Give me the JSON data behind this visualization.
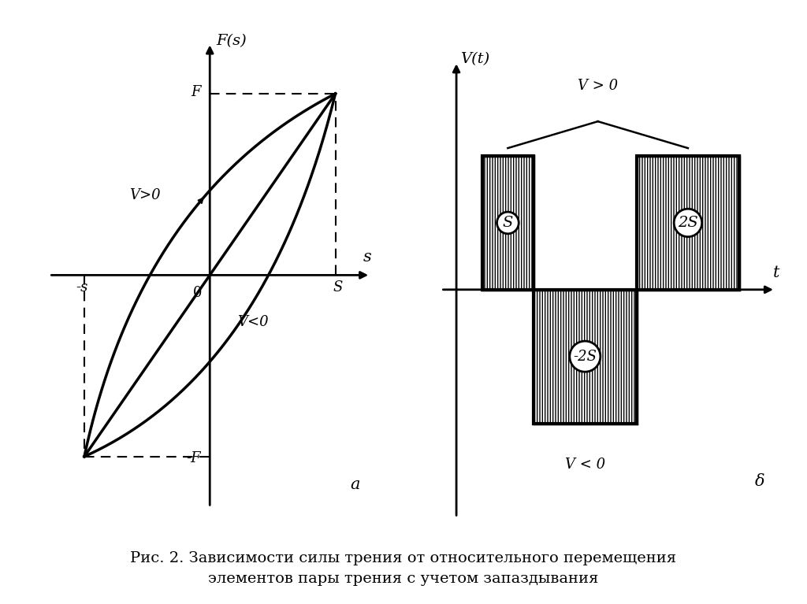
{
  "bg_color": "#ffffff",
  "left_panel": {
    "axis_label_x": "s",
    "axis_label_y": "F(s)",
    "label_F": "F",
    "label_negF": "-F",
    "label_negS": "-s",
    "label_S": "S",
    "label_O": "0",
    "label_Vpos": "V>0",
    "label_Vneg": "V<0",
    "label_a": "a"
  },
  "right_panel": {
    "axis_label_x": "t",
    "axis_label_y": "V(t)",
    "label_Vpos": "V > 0",
    "label_Vneg": "V < 0",
    "label_delta": "δ",
    "label_S": "S",
    "label_2S": "2S",
    "label_neg2S": "-2S"
  },
  "caption_line1": "Рис. 2. Зависимости силы трения от относительного перемещения",
  "caption_line2": "элементов пары трения с учетом запаздывания",
  "caption_fontsize": 14
}
